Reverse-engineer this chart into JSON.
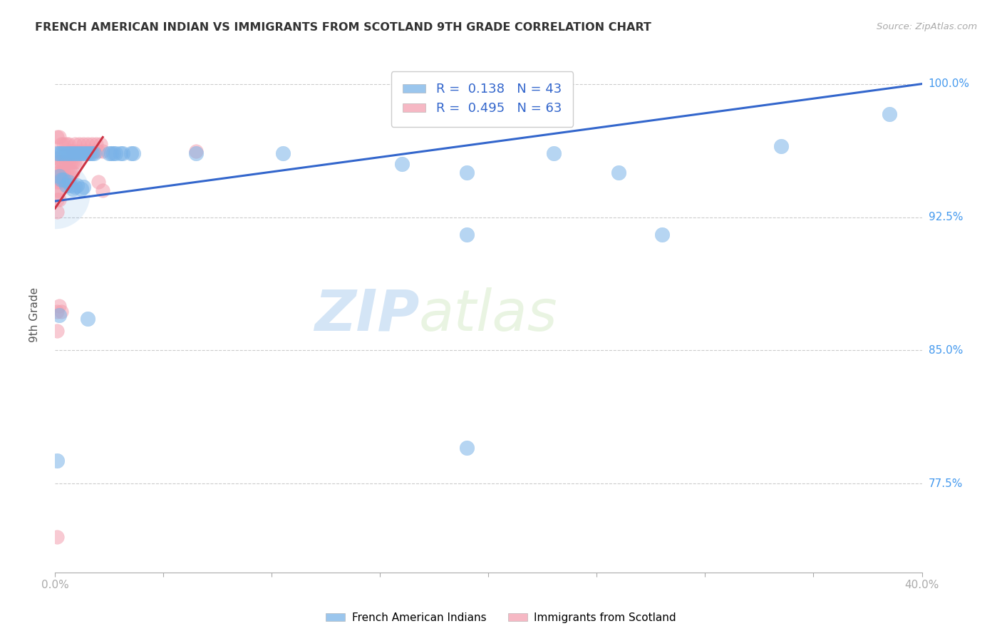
{
  "title": "FRENCH AMERICAN INDIAN VS IMMIGRANTS FROM SCOTLAND 9TH GRADE CORRELATION CHART",
  "source": "Source: ZipAtlas.com",
  "ylabel": "9th Grade",
  "ytick_labels": [
    "100.0%",
    "92.5%",
    "85.0%",
    "77.5%"
  ],
  "ytick_values": [
    1.0,
    0.925,
    0.85,
    0.775
  ],
  "xlim": [
    0.0,
    0.4
  ],
  "ylim": [
    0.725,
    1.015
  ],
  "legend_blue_R": "0.138",
  "legend_blue_N": "43",
  "legend_pink_R": "0.495",
  "legend_pink_N": "63",
  "legend_blue_label": "French American Indians",
  "legend_pink_label": "Immigrants from Scotland",
  "watermark_zip": "ZIP",
  "watermark_atlas": "atlas",
  "blue_scatter": [
    [
      0.001,
      0.961
    ],
    [
      0.002,
      0.961
    ],
    [
      0.003,
      0.961
    ],
    [
      0.004,
      0.961
    ],
    [
      0.005,
      0.961
    ],
    [
      0.006,
      0.961
    ],
    [
      0.007,
      0.961
    ],
    [
      0.008,
      0.961
    ],
    [
      0.009,
      0.961
    ],
    [
      0.01,
      0.961
    ],
    [
      0.011,
      0.961
    ],
    [
      0.012,
      0.961
    ],
    [
      0.013,
      0.961
    ],
    [
      0.014,
      0.961
    ],
    [
      0.015,
      0.961
    ],
    [
      0.016,
      0.961
    ],
    [
      0.017,
      0.961
    ],
    [
      0.018,
      0.961
    ],
    [
      0.025,
      0.961
    ],
    [
      0.026,
      0.961
    ],
    [
      0.027,
      0.961
    ],
    [
      0.028,
      0.961
    ],
    [
      0.03,
      0.961
    ],
    [
      0.031,
      0.961
    ],
    [
      0.035,
      0.961
    ],
    [
      0.036,
      0.961
    ],
    [
      0.002,
      0.948
    ],
    [
      0.003,
      0.946
    ],
    [
      0.004,
      0.946
    ],
    [
      0.005,
      0.943
    ],
    [
      0.006,
      0.945
    ],
    [
      0.007,
      0.943
    ],
    [
      0.008,
      0.941
    ],
    [
      0.009,
      0.942
    ],
    [
      0.01,
      0.943
    ],
    [
      0.012,
      0.941
    ],
    [
      0.013,
      0.942
    ],
    [
      0.065,
      0.961
    ],
    [
      0.105,
      0.961
    ],
    [
      0.16,
      0.955
    ],
    [
      0.23,
      0.961
    ],
    [
      0.19,
      0.95
    ],
    [
      0.26,
      0.95
    ],
    [
      0.19,
      0.915
    ],
    [
      0.28,
      0.915
    ],
    [
      0.19,
      0.795
    ],
    [
      0.335,
      0.965
    ],
    [
      0.385,
      0.983
    ],
    [
      0.002,
      0.87
    ],
    [
      0.015,
      0.868
    ],
    [
      0.001,
      0.788
    ]
  ],
  "pink_scatter": [
    [
      0.001,
      0.97
    ],
    [
      0.002,
      0.97
    ],
    [
      0.003,
      0.966
    ],
    [
      0.004,
      0.966
    ],
    [
      0.005,
      0.966
    ],
    [
      0.006,
      0.966
    ],
    [
      0.007,
      0.962
    ],
    [
      0.008,
      0.962
    ],
    [
      0.009,
      0.966
    ],
    [
      0.01,
      0.962
    ],
    [
      0.011,
      0.966
    ],
    [
      0.012,
      0.962
    ],
    [
      0.013,
      0.966
    ],
    [
      0.014,
      0.962
    ],
    [
      0.015,
      0.966
    ],
    [
      0.016,
      0.962
    ],
    [
      0.017,
      0.966
    ],
    [
      0.018,
      0.962
    ],
    [
      0.019,
      0.966
    ],
    [
      0.02,
      0.962
    ],
    [
      0.021,
      0.966
    ],
    [
      0.022,
      0.962
    ],
    [
      0.001,
      0.958
    ],
    [
      0.002,
      0.956
    ],
    [
      0.003,
      0.956
    ],
    [
      0.004,
      0.956
    ],
    [
      0.005,
      0.956
    ],
    [
      0.006,
      0.956
    ],
    [
      0.007,
      0.956
    ],
    [
      0.008,
      0.956
    ],
    [
      0.009,
      0.956
    ],
    [
      0.01,
      0.956
    ],
    [
      0.001,
      0.95
    ],
    [
      0.002,
      0.95
    ],
    [
      0.003,
      0.95
    ],
    [
      0.004,
      0.95
    ],
    [
      0.005,
      0.95
    ],
    [
      0.006,
      0.95
    ],
    [
      0.007,
      0.95
    ],
    [
      0.008,
      0.95
    ],
    [
      0.001,
      0.945
    ],
    [
      0.002,
      0.945
    ],
    [
      0.003,
      0.945
    ],
    [
      0.001,
      0.94
    ],
    [
      0.002,
      0.94
    ],
    [
      0.001,
      0.935
    ],
    [
      0.002,
      0.935
    ],
    [
      0.001,
      0.928
    ],
    [
      0.02,
      0.945
    ],
    [
      0.022,
      0.94
    ],
    [
      0.001,
      0.872
    ],
    [
      0.002,
      0.875
    ],
    [
      0.003,
      0.872
    ],
    [
      0.001,
      0.861
    ],
    [
      0.065,
      0.962
    ],
    [
      0.001,
      0.745
    ]
  ],
  "blue_scatter_sizes": 220,
  "pink_scatter_sizes": 200,
  "blue_large_blob": [
    0.0,
    0.938,
    5000
  ],
  "blue_line_x": [
    0.0,
    0.4
  ],
  "blue_line_y": [
    0.934,
    1.0
  ],
  "pink_line_x": [
    0.0,
    0.022
  ],
  "pink_line_y": [
    0.93,
    0.97
  ],
  "blue_color": "#7ab3e8",
  "pink_color": "#f4a0b0",
  "blue_line_color": "#3366cc",
  "pink_line_color": "#cc3344",
  "grid_color": "#cccccc",
  "title_color": "#333333",
  "right_label_color": "#4499ee"
}
